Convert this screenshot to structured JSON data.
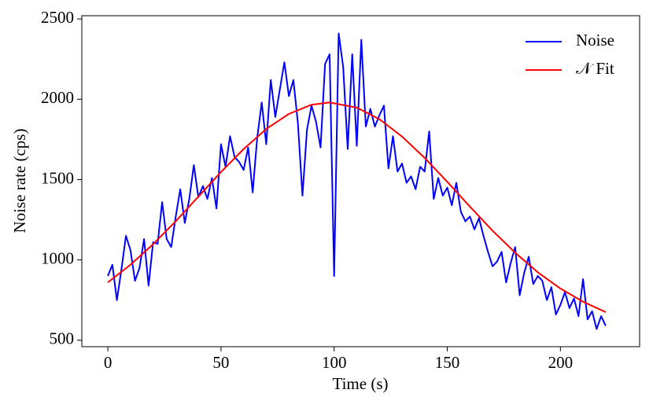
{
  "chart_data": {
    "type": "line",
    "xlabel": "Time (s)",
    "ylabel": "Noise rate (cps)",
    "xlim": [
      -11.5,
      235
    ],
    "xticks": [
      0,
      50,
      100,
      150,
      200
    ],
    "ylim": [
      460,
      2520
    ],
    "yticks": [
      500,
      1000,
      1500,
      2000,
      2500
    ],
    "legend": "upper right",
    "series": [
      {
        "name": "Noise",
        "color": "#0000ff",
        "x": [
          0,
          2,
          4,
          6,
          8,
          10,
          12,
          14,
          16,
          18,
          20,
          22,
          24,
          26,
          28,
          30,
          32,
          34,
          36,
          38,
          40,
          42,
          44,
          46,
          48,
          50,
          52,
          54,
          56,
          58,
          60,
          62,
          64,
          66,
          68,
          70,
          72,
          74,
          76,
          78,
          80,
          82,
          84,
          86,
          88,
          90,
          92,
          94,
          96,
          98,
          100,
          102,
          104,
          106,
          108,
          110,
          112,
          114,
          116,
          118,
          120,
          122,
          124,
          126,
          128,
          130,
          132,
          134,
          136,
          138,
          140,
          142,
          144,
          146,
          148,
          150,
          152,
          154,
          156,
          158,
          160,
          162,
          164,
          166,
          168,
          170,
          172,
          174,
          176,
          178,
          180,
          182,
          184,
          186,
          188,
          190,
          192,
          194,
          196,
          198,
          200,
          202,
          204,
          206,
          208,
          210,
          212,
          214,
          216,
          218,
          220
        ],
        "values": [
          900,
          970,
          750,
          940,
          1150,
          1060,
          870,
          950,
          1130,
          840,
          1110,
          1100,
          1360,
          1130,
          1080,
          1270,
          1440,
          1230,
          1380,
          1590,
          1390,
          1460,
          1380,
          1510,
          1320,
          1720,
          1580,
          1770,
          1640,
          1610,
          1560,
          1700,
          1420,
          1760,
          1980,
          1720,
          2120,
          1890,
          2060,
          2230,
          2020,
          2120,
          1850,
          1400,
          1810,
          1960,
          1860,
          1700,
          2220,
          2280,
          900,
          2410,
          2200,
          1690,
          2280,
          1710,
          2370,
          1830,
          1940,
          1830,
          1900,
          1960,
          1570,
          1770,
          1550,
          1600,
          1480,
          1520,
          1440,
          1580,
          1550,
          1800,
          1380,
          1510,
          1400,
          1450,
          1340,
          1480,
          1300,
          1240,
          1270,
          1190,
          1260,
          1150,
          1050,
          960,
          990,
          1050,
          860,
          980,
          1080,
          780,
          920,
          1020,
          850,
          900,
          870,
          750,
          830,
          660,
          720,
          800,
          700,
          760,
          650,
          880,
          630,
          680,
          570,
          650,
          590
        ]
      },
      {
        "name": "𝒩 Fit",
        "color": "#ff0000",
        "x": [
          0,
          10,
          20,
          30,
          40,
          50,
          60,
          70,
          80,
          90,
          98,
          110,
          120,
          130,
          140,
          150,
          160,
          170,
          180,
          190,
          200,
          210,
          220
        ],
        "values": [
          860,
          970,
          1098,
          1241,
          1394,
          1547,
          1690,
          1815,
          1909,
          1966,
          1980,
          1948,
          1876,
          1768,
          1635,
          1486,
          1332,
          1182,
          1045,
          923,
          822,
          740,
          675
        ]
      }
    ]
  }
}
